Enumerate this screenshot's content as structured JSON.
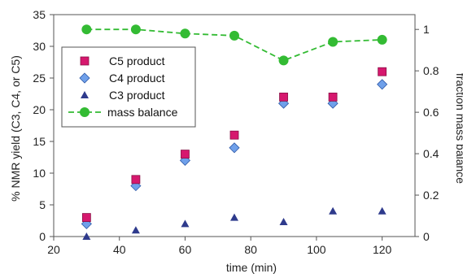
{
  "chart_data": {
    "type": "scatter",
    "title": "",
    "xlabel": "time (min)",
    "ylabel_left": "% NMR yield (C3, C4, or C5)",
    "ylabel_right": "fraction mass balance",
    "xlim": [
      20,
      130
    ],
    "ylim_left": [
      0,
      35
    ],
    "ylim_right": [
      0,
      1.0714
    ],
    "x_ticks": [
      "20",
      "40",
      "60",
      "80",
      "100",
      "120"
    ],
    "y_ticks_left": [
      "0",
      "5",
      "10",
      "15",
      "20",
      "25",
      "30",
      "35"
    ],
    "y_ticks_right": [
      "0",
      "0.2",
      "0.4",
      "0.6",
      "0.8",
      "1"
    ],
    "grid": false,
    "legend_position": "left",
    "series": [
      {
        "name": "C5 product",
        "axis": "left",
        "marker": "square",
        "color": "#d6186e",
        "x": [
          30,
          45,
          60,
          75,
          90,
          105,
          120
        ],
        "y": [
          3,
          9,
          13,
          16,
          22,
          22,
          26
        ]
      },
      {
        "name": "C4 product",
        "axis": "left",
        "marker": "diamond",
        "color": "#6fa0ea",
        "x": [
          30,
          45,
          60,
          75,
          90,
          105,
          120
        ],
        "y": [
          2,
          8,
          12,
          14,
          21,
          21,
          24
        ]
      },
      {
        "name": "C3 product",
        "axis": "left",
        "marker": "triangle",
        "color": "#2e3a8c",
        "x": [
          30,
          45,
          60,
          75,
          90,
          105,
          120
        ],
        "y": [
          0,
          1,
          2,
          3,
          2.3,
          4,
          4
        ]
      },
      {
        "name": "mass balance",
        "axis": "right",
        "marker": "circle",
        "line": "dashed",
        "color": "#33bb33",
        "x": [
          30,
          45,
          60,
          75,
          90,
          105,
          120
        ],
        "y": [
          1.0,
          1.0,
          0.98,
          0.97,
          0.85,
          0.94,
          0.95
        ]
      }
    ]
  }
}
